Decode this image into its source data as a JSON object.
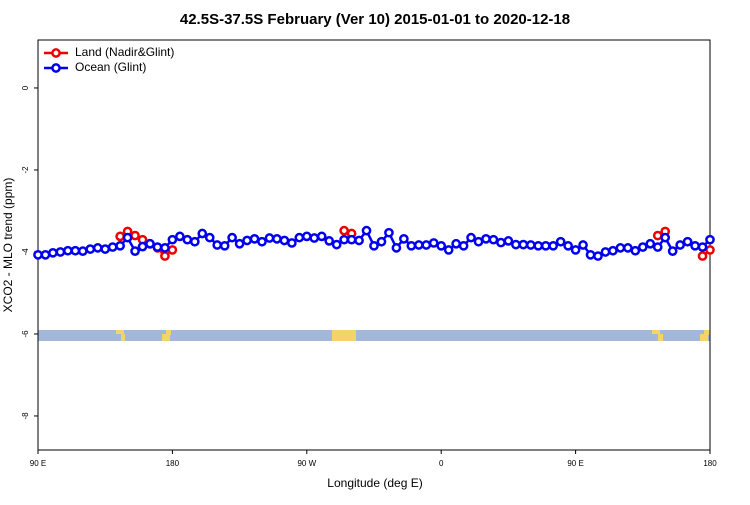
{
  "chart_data": {
    "type": "line",
    "title": "42.5S-37.5S February (Ver 10)   2015-01-01 to 2020-12-18",
    "x_label": "Longitude (deg E)",
    "y_label": "XCO2 - MLO trend (ppm)",
    "x": [
      90,
      95,
      100,
      105,
      110,
      115,
      120,
      125,
      130,
      135,
      140,
      145,
      150,
      155,
      160,
      165,
      170,
      175,
      180,
      185,
      190,
      195,
      200,
      205,
      210,
      215,
      220,
      225,
      230,
      235,
      240,
      245,
      250,
      255,
      260,
      265,
      270,
      275,
      280,
      285,
      290,
      295,
      300,
      305,
      310,
      315,
      320,
      325,
      330,
      335,
      340,
      345,
      350,
      355,
      360,
      365,
      370,
      375,
      380,
      385,
      390,
      395,
      400,
      405,
      410,
      415,
      420,
      425,
      430,
      435,
      440,
      445,
      450,
      455,
      460,
      465,
      470,
      475,
      480,
      485,
      490,
      495,
      500,
      505,
      510,
      515,
      520,
      525,
      530,
      535,
      540
    ],
    "series": [
      {
        "name": "Land (Nadir&Glint)",
        "color": "#ee0000",
        "values": [
          null,
          null,
          null,
          null,
          null,
          null,
          null,
          null,
          null,
          null,
          null,
          -3.62,
          -3.5,
          -3.6,
          -3.7,
          -3.8,
          -3.9,
          -4.1,
          -3.95,
          null,
          null,
          null,
          null,
          null,
          null,
          null,
          null,
          null,
          null,
          null,
          null,
          null,
          null,
          null,
          null,
          null,
          null,
          null,
          null,
          null,
          null,
          -3.48,
          -3.55,
          null,
          null,
          null,
          null,
          null,
          null,
          null,
          null,
          null,
          null,
          null,
          null,
          null,
          null,
          null,
          null,
          null,
          null,
          null,
          null,
          null,
          null,
          null,
          null,
          null,
          null,
          null,
          null,
          null,
          null,
          null,
          null,
          null,
          null,
          null,
          null,
          null,
          null,
          null,
          null,
          -3.6,
          -3.5,
          null,
          null,
          null,
          null,
          -4.1,
          -3.95
        ]
      },
      {
        "name": "Ocean (Glint)",
        "color": "#0000ee",
        "values": [
          -4.07,
          -4.07,
          -4.02,
          -4.0,
          -3.97,
          -3.97,
          -3.98,
          -3.93,
          -3.9,
          -3.93,
          -3.88,
          -3.85,
          -3.65,
          -3.98,
          -3.87,
          -3.8,
          -3.88,
          -3.9,
          -3.7,
          -3.62,
          -3.7,
          -3.75,
          -3.55,
          -3.65,
          -3.83,
          -3.85,
          -3.65,
          -3.8,
          -3.72,
          -3.68,
          -3.75,
          -3.66,
          -3.68,
          -3.72,
          -3.78,
          -3.65,
          -3.62,
          -3.66,
          -3.62,
          -3.73,
          -3.82,
          -3.7,
          -3.7,
          -3.72,
          -3.48,
          -3.85,
          -3.75,
          -3.53,
          -3.9,
          -3.68,
          -3.85,
          -3.83,
          -3.83,
          -3.78,
          -3.85,
          -3.95,
          -3.8,
          -3.85,
          -3.65,
          -3.75,
          -3.68,
          -3.7,
          -3.77,
          -3.73,
          -3.82,
          -3.82,
          -3.83,
          -3.85,
          -3.85,
          -3.85,
          -3.75,
          -3.85,
          -3.95,
          -3.83,
          -4.07,
          -4.1,
          -4.0,
          -3.97,
          -3.9,
          -3.9,
          -3.97,
          -3.88,
          -3.8,
          -3.88,
          -3.65,
          -3.98,
          -3.83,
          -3.75,
          -3.85,
          -3.88,
          -3.7
        ]
      }
    ],
    "xlim": [
      90,
      540
    ],
    "xticks": [
      {
        "value": 90,
        "label": "90 E"
      },
      {
        "value": 180,
        "label": "180"
      },
      {
        "value": 270,
        "label": "90 W"
      },
      {
        "value": 360,
        "label": "0"
      },
      {
        "value": 450,
        "label": "90 E"
      },
      {
        "value": 540,
        "label": "180"
      }
    ],
    "ylim": [
      -8.83,
      1.17
    ],
    "yticks": [
      -8,
      -6,
      -4,
      -2,
      0
    ],
    "legend": "top-left"
  }
}
